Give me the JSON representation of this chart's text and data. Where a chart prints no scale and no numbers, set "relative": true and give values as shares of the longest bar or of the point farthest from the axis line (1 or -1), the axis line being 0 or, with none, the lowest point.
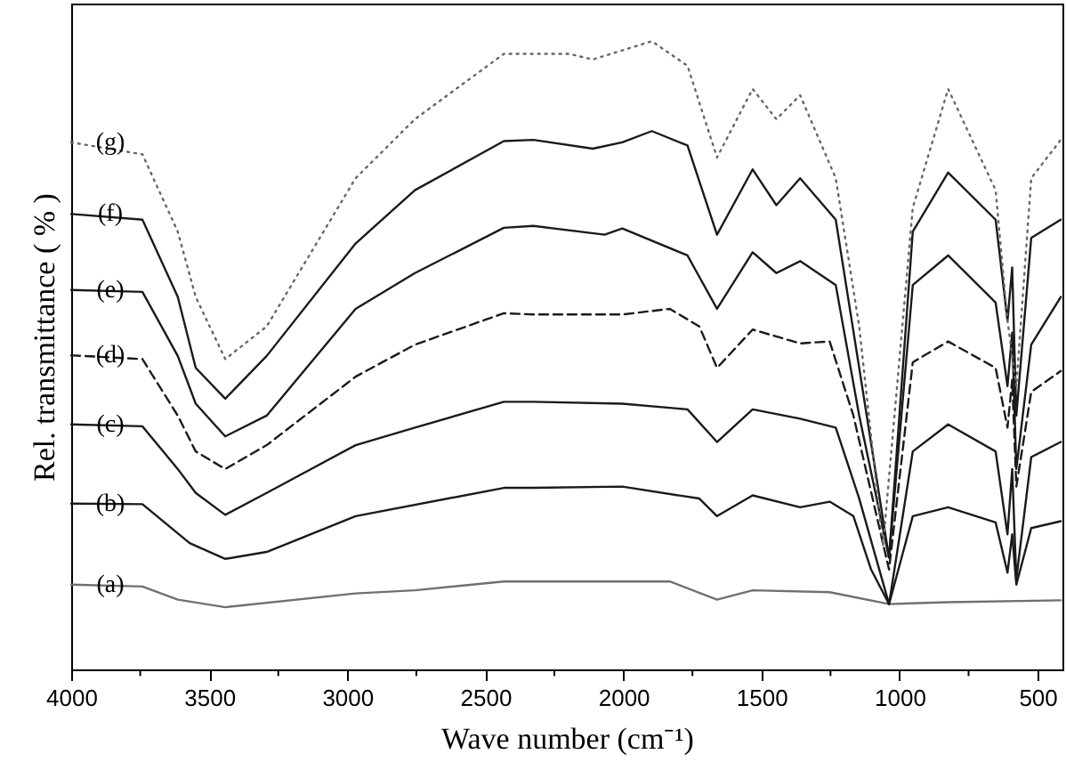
{
  "chart_data": {
    "type": "line",
    "relative": true,
    "xlabel": "Wave number (cm⁻¹)",
    "ylabel": "Rel. transmittance ( % )",
    "xlim": [
      4000,
      410
    ],
    "xticks": [
      4000,
      {
        "value": 3750,
        "label": null
      },
      3500,
      {
        "value": 3250,
        "label": null
      },
      3000,
      {
        "value": 2750,
        "label": null
      },
      2500,
      {
        "value": 2250,
        "label": null
      },
      2000,
      {
        "value": 1750,
        "label": null
      },
      1500,
      {
        "value": 1250,
        "label": null
      },
      1000,
      {
        "value": 750,
        "label": null
      },
      500
    ],
    "grid": false,
    "marker": "none",
    "series": [
      {
        "name": "(a)",
        "color": "#707070",
        "line_style": "solid",
        "x": [
          4000,
          3742,
          3614,
          3442,
          2970,
          2755,
          2433,
          2326,
          1832,
          1661,
          1532,
          1253,
          1038,
          824,
          416
        ],
        "values": [
          0.135,
          0.132,
          0.111,
          0.099,
          0.121,
          0.126,
          0.14,
          0.14,
          0.14,
          0.111,
          0.126,
          0.123,
          0.104,
          0.107,
          0.11
        ]
      },
      {
        "name": "(b)",
        "color": "#1a1a1a",
        "line_style": "solid",
        "x": [
          4000,
          3742,
          3571,
          3442,
          3292,
          2970,
          2433,
          2326,
          2004,
          1725,
          1661,
          1532,
          1360,
          1253,
          1167,
          1103,
          1038,
          952,
          824,
          652,
          609,
          592,
          577,
          523,
          416
        ],
        "values": [
          0.264,
          0.263,
          0.201,
          0.176,
          0.187,
          0.244,
          0.289,
          0.289,
          0.291,
          0.272,
          0.244,
          0.277,
          0.258,
          0.267,
          0.244,
          0.159,
          0.104,
          0.244,
          0.258,
          0.234,
          0.154,
          0.215,
          0.135,
          0.225,
          0.236
        ]
      },
      {
        "name": "(c)",
        "color": "#1a1a1a",
        "line_style": "solid",
        "x": [
          4000,
          3742,
          3614,
          3549,
          3442,
          3292,
          2970,
          2755,
          2433,
          2326,
          2004,
          1768,
          1661,
          1532,
          1360,
          1231,
          1146,
          1038,
          952,
          824,
          652,
          609,
          592,
          577,
          523,
          416
        ],
        "values": [
          0.39,
          0.387,
          0.319,
          0.281,
          0.246,
          0.281,
          0.357,
          0.385,
          0.426,
          0.426,
          0.423,
          0.414,
          0.362,
          0.414,
          0.399,
          0.385,
          0.272,
          0.104,
          0.347,
          0.39,
          0.347,
          0.215,
          0.319,
          0.144,
          0.338,
          0.362
        ]
      },
      {
        "name": "(d)",
        "color": "#1a1a1a",
        "line_style": "dashed",
        "x": [
          4000,
          3742,
          3614,
          3549,
          3442,
          3292,
          2970,
          2755,
          2433,
          2326,
          2004,
          1832,
          1725,
          1661,
          1532,
          1360,
          1253,
          1167,
          1038,
          952,
          824,
          652,
          609,
          592,
          577,
          523,
          416
        ],
        "values": [
          0.5,
          0.494,
          0.404,
          0.347,
          0.319,
          0.357,
          0.466,
          0.517,
          0.567,
          0.565,
          0.565,
          0.574,
          0.546,
          0.48,
          0.541,
          0.519,
          0.522,
          0.404,
          0.159,
          0.489,
          0.522,
          0.48,
          0.385,
          0.461,
          0.291,
          0.442,
          0.475
        ]
      },
      {
        "name": "(e)",
        "color": "#1a1a1a",
        "line_style": "solid",
        "x": [
          4000,
          3742,
          3614,
          3549,
          3442,
          3292,
          2970,
          2755,
          2433,
          2326,
          2068,
          2004,
          1768,
          1661,
          1532,
          1446,
          1360,
          1231,
          1146,
          1038,
          952,
          824,
          652,
          609,
          592,
          577,
          523,
          416
        ],
        "values": [
          0.604,
          0.601,
          0.499,
          0.423,
          0.371,
          0.404,
          0.574,
          0.631,
          0.703,
          0.706,
          0.692,
          0.702,
          0.659,
          0.574,
          0.664,
          0.631,
          0.65,
          0.612,
          0.404,
          0.178,
          0.612,
          0.659,
          0.584,
          0.451,
          0.536,
          0.319,
          0.517,
          0.593
        ]
      },
      {
        "name": "(f)",
        "color": "#1a1a1a",
        "line_style": "solid",
        "x": [
          4000,
          3742,
          3614,
          3549,
          3442,
          3292,
          2970,
          2755,
          2433,
          2326,
          2111,
          2004,
          1897,
          1768,
          1661,
          1532,
          1446,
          1360,
          1231,
          1146,
          1038,
          952,
          824,
          652,
          609,
          592,
          577,
          523,
          416
        ],
        "values": [
          0.725,
          0.716,
          0.593,
          0.48,
          0.431,
          0.499,
          0.678,
          0.763,
          0.841,
          0.843,
          0.829,
          0.839,
          0.857,
          0.834,
          0.692,
          0.796,
          0.739,
          0.782,
          0.716,
          0.48,
          0.178,
          0.697,
          0.791,
          0.716,
          0.555,
          0.64,
          0.404,
          0.687,
          0.716
        ]
      },
      {
        "name": "(g)",
        "color": "#666666",
        "line_style": "dotted",
        "x": [
          4000,
          3742,
          3614,
          3549,
          3442,
          3292,
          2970,
          2755,
          2433,
          2197,
          2111,
          1897,
          1768,
          1661,
          1532,
          1446,
          1360,
          1231,
          1146,
          1060,
          952,
          824,
          652,
          609,
          577,
          523,
          416
        ],
        "values": [
          0.839,
          0.82,
          0.697,
          0.593,
          0.494,
          0.546,
          0.782,
          0.876,
          0.98,
          0.98,
          0.971,
          1,
          0.961,
          0.815,
          0.924,
          0.876,
          0.914,
          0.782,
          0.546,
          0.196,
          0.735,
          0.924,
          0.763,
          0.555,
          0.451,
          0.782,
          0.843
        ]
      }
    ]
  }
}
